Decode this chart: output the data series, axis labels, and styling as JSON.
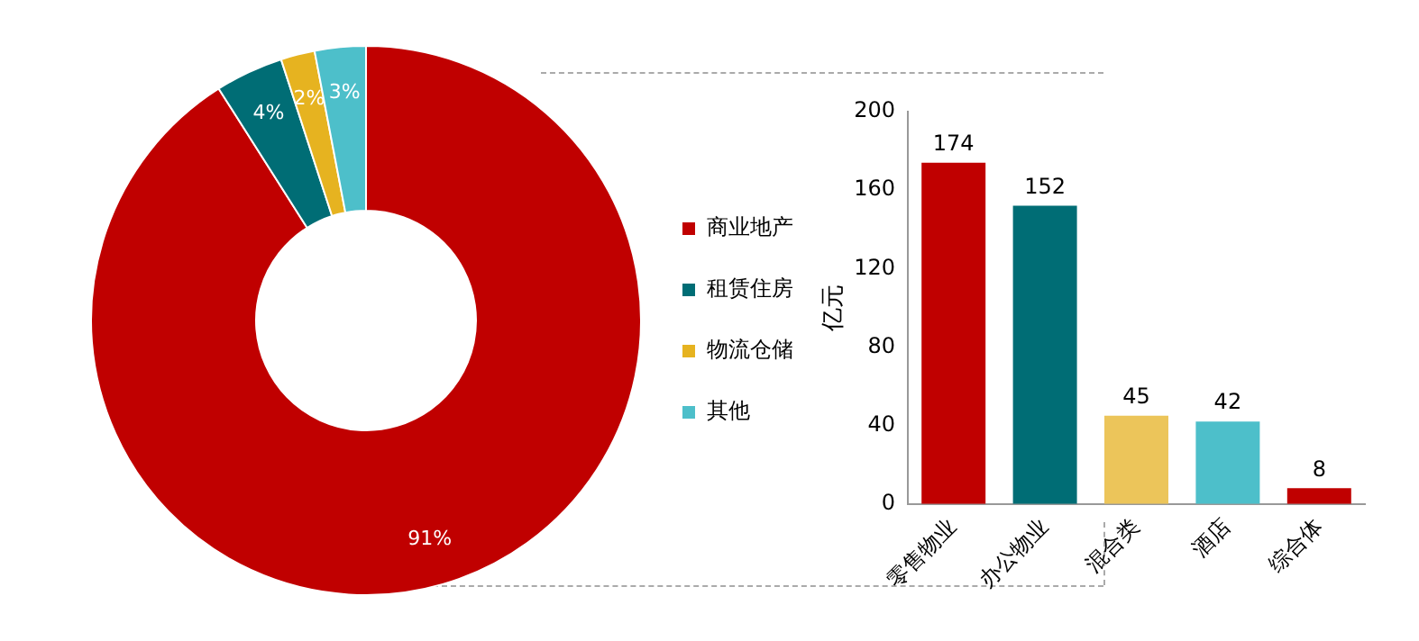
{
  "chart_data": [
    {
      "type": "donut",
      "categories": [
        "商业地产",
        "租赁住房",
        "物流仓储",
        "其他"
      ],
      "values": [
        91,
        4,
        2,
        3
      ],
      "colors": [
        "#c00000",
        "#006d75",
        "#e6b320",
        "#4dbfca"
      ],
      "value_labels": [
        "91%",
        "4%",
        "2%",
        "3%"
      ],
      "legend": "right"
    },
    {
      "type": "bar",
      "categories": [
        "零售物业",
        "办公物业",
        "混合类",
        "酒店",
        "综合体"
      ],
      "values": [
        174,
        152,
        45,
        42,
        8
      ],
      "colors": [
        "#c00000",
        "#006d75",
        "#ecc55a",
        "#4dbfca",
        "#c00000"
      ],
      "ylabel": "亿元",
      "ylim": [
        0,
        200
      ],
      "yticks": [
        0,
        40,
        80,
        120,
        160,
        200
      ],
      "data_labels": true,
      "grid": false,
      "legend": false
    }
  ]
}
